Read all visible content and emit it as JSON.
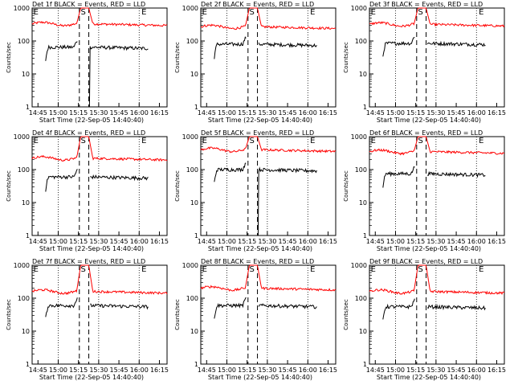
{
  "chart_data": {
    "type": "line",
    "yscale": "log",
    "ylim": [
      1,
      1000
    ],
    "ylabel": "Counts/sec",
    "xlabel": "Start Time (22-Sep-05 14:40:40)",
    "x_tick_labels": [
      "14:45",
      "15:00",
      "15:15",
      "15:30",
      "15:45",
      "16:00",
      "16:15"
    ],
    "x_tick_minutes": [
      4.33,
      19.33,
      34.33,
      49.33,
      64.33,
      79.33,
      94.33
    ],
    "x_range_minutes": [
      0,
      100
    ],
    "y_tick_labels": [
      "1",
      "10",
      "100",
      "1000"
    ],
    "y_tick_values": [
      1,
      10,
      100,
      1000
    ],
    "dotted_lines_minutes": [
      0,
      19.33,
      49.33,
      79.33,
      100
    ],
    "dashed_lines_minutes": [
      35,
      42
    ],
    "marker_labels": [
      {
        "text": "E",
        "minute": 1
      },
      {
        "text": "S",
        "minute": 36
      },
      {
        "text": "E",
        "minute": 81
      }
    ],
    "series_names": [
      "Events",
      "LLD"
    ],
    "series_colors": {
      "Events": "#000000",
      "LLD": "#ff0000"
    },
    "panels": [
      {
        "title": "Det 1f BLACK = Events, RED = LLD",
        "lld_level": 330,
        "lld_peak": 1000,
        "events_level": 65,
        "events_drop": true
      },
      {
        "title": "Det 2f BLACK = Events, RED = LLD",
        "lld_level": 270,
        "lld_peak": 1000,
        "events_level": 80,
        "events_drop": false
      },
      {
        "title": "Det 3f BLACK = Events, RED = LLD",
        "lld_level": 320,
        "lld_peak": 1000,
        "events_level": 85,
        "events_drop": false
      },
      {
        "title": "Det 4f BLACK = Events, RED = LLD",
        "lld_level": 220,
        "lld_peak": 1000,
        "events_level": 60,
        "events_drop": false
      },
      {
        "title": "Det 5f BLACK = Events, RED = LLD",
        "lld_level": 400,
        "lld_peak": 1000,
        "events_level": 100,
        "events_drop": true
      },
      {
        "title": "Det 6f BLACK = Events, RED = LLD",
        "lld_level": 350,
        "lld_peak": 1000,
        "events_level": 75,
        "events_drop": false
      },
      {
        "title": "Det 7f BLACK = Events, RED = LLD",
        "lld_level": 160,
        "lld_peak": 1000,
        "events_level": 60,
        "events_drop": false
      },
      {
        "title": "Det 8f BLACK = Events, RED = LLD",
        "lld_level": 200,
        "lld_peak": 1000,
        "events_level": 60,
        "events_drop": false
      },
      {
        "title": "Det 9f BLACK = Events, RED = LLD",
        "lld_level": 160,
        "lld_peak": 1000,
        "events_level": 55,
        "events_drop": false
      }
    ]
  }
}
